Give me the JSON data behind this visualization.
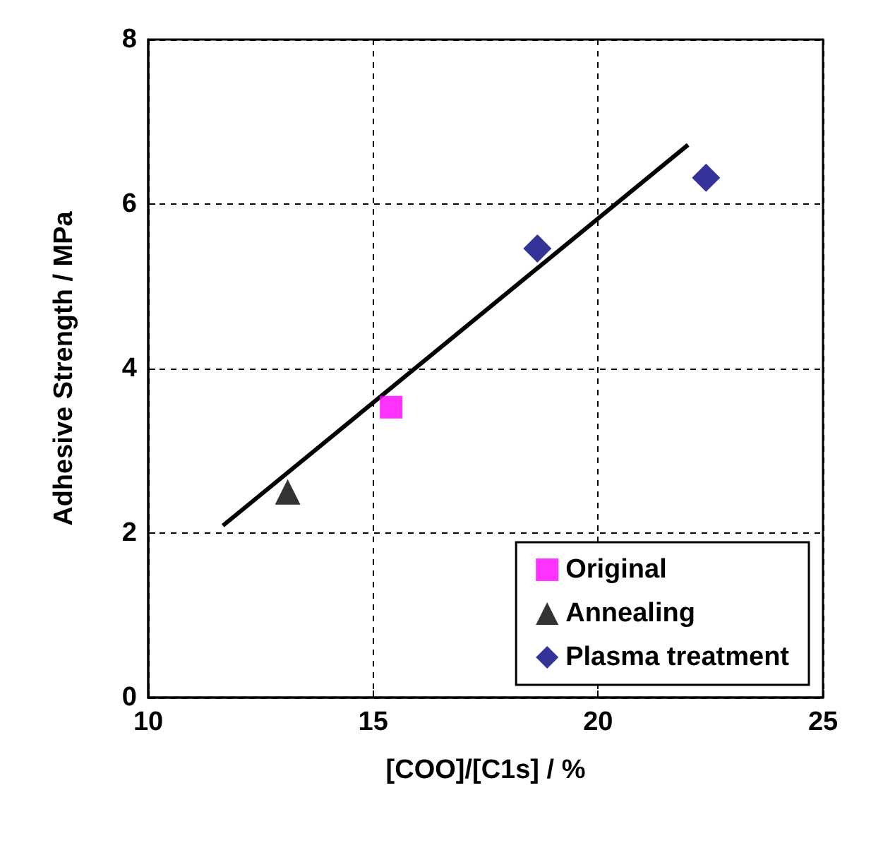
{
  "chart_data": {
    "type": "scatter",
    "xlabel": "[COO]/[C1s] / %",
    "ylabel": "Adhesive Strength / MPa",
    "xlim": [
      10,
      25
    ],
    "xticks": [
      10,
      15,
      20,
      25
    ],
    "ylim": [
      0,
      8
    ],
    "yticks": [
      0,
      2,
      4,
      6,
      8
    ],
    "grid": true,
    "legend": "bottom right",
    "series": [
      {
        "name": "Original",
        "color": "#ff00ff",
        "marker": "square",
        "x": [
          15.4
        ],
        "values": [
          3.53
        ]
      },
      {
        "name": "Annealing",
        "color": "#000000",
        "marker": "triangle",
        "x": [
          13.1
        ],
        "values": [
          2.5
        ]
      },
      {
        "name": "Plasma treatment",
        "color": "#000080",
        "marker": "diamond",
        "x": [
          18.65,
          22.4
        ],
        "values": [
          5.46,
          6.32
        ]
      },
      {
        "type": "line",
        "color": "#000000",
        "marker": "none",
        "line_style": "solid",
        "x": [
          11.66,
          22.0
        ],
        "values": [
          2.09,
          6.72
        ]
      }
    ]
  }
}
